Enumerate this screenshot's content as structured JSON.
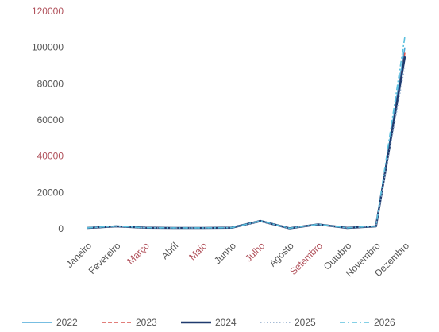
{
  "chart_data": {
    "type": "line",
    "title": "",
    "xlabel": "",
    "ylabel": "",
    "ylim": [
      0,
      120000
    ],
    "yticks": [
      0,
      20000,
      40000,
      60000,
      80000,
      100000,
      120000
    ],
    "ytick_labels": [
      "0",
      "20000",
      "40000",
      "60000",
      "80000",
      "100000",
      "120000"
    ],
    "grid": false,
    "legend_position": "bottom",
    "categories": [
      "Janeiro",
      "Fevereiro",
      "Março",
      "Abril",
      "Maio",
      "Junho",
      "Julho",
      "Agosto",
      "Setembro",
      "Outubro",
      "Novembro",
      "Dezembro"
    ],
    "series": [
      {
        "name": "2022",
        "color": "#4aa8d8",
        "dash": "solid",
        "values": [
          500,
          1500,
          600,
          500,
          500,
          600,
          4500,
          300,
          2500,
          500,
          1500,
          100000
        ]
      },
      {
        "name": "2023",
        "color": "#d9534f",
        "dash": "dashed",
        "values": [
          400,
          1400,
          500,
          400,
          400,
          500,
          4200,
          250,
          2300,
          450,
          1400,
          97000
        ]
      },
      {
        "name": "2024",
        "color": "#1f3a6e",
        "dash": "solid-thick",
        "values": [
          450,
          1300,
          550,
          450,
          450,
          550,
          4300,
          280,
          2400,
          480,
          1300,
          95000
        ]
      },
      {
        "name": "2025",
        "color": "#8aa6c8",
        "dash": "dotted",
        "values": [
          420,
          1350,
          520,
          430,
          430,
          520,
          4100,
          260,
          2350,
          460,
          1350,
          90000
        ]
      },
      {
        "name": "2026",
        "color": "#5bc0de",
        "dash": "dash-dot",
        "values": [
          480,
          1450,
          580,
          480,
          480,
          580,
          4400,
          290,
          2450,
          490,
          1450,
          106000
        ]
      }
    ]
  }
}
